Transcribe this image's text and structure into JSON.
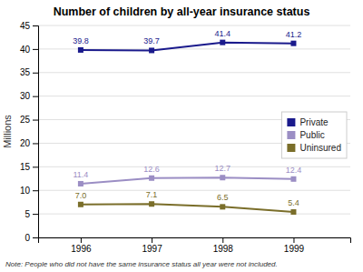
{
  "chart_data": {
    "type": "line",
    "title": "Number of children by all-year insurance status",
    "y_label": "Millions",
    "x": [
      1996,
      1997,
      1998,
      1999
    ],
    "xlim": [
      1995.4,
      1999.8
    ],
    "xticks": [
      1996,
      1997,
      1998,
      1999
    ],
    "ylim": [
      0,
      45
    ],
    "yticks": [
      0,
      5,
      10,
      15,
      20,
      25,
      30,
      35,
      40,
      45
    ],
    "grid": true,
    "legend": "right",
    "data_labels": true,
    "marker": "square",
    "series": [
      {
        "name": "Private",
        "color": "#1a1a8c",
        "values": [
          39.8,
          39.7,
          41.4,
          41.2
        ]
      },
      {
        "name": "Public",
        "color": "#9b8ec4",
        "values": [
          11.4,
          12.6,
          12.7,
          12.4
        ]
      },
      {
        "name": "Uninsured",
        "color": "#7a6e2a",
        "values": [
          7.0,
          7.1,
          6.5,
          5.4
        ],
        "value_labels": [
          "7.0",
          "7.1",
          "6.5",
          "5.4"
        ]
      }
    ],
    "annotations": [
      "Note: People who did not have the same insurance status all year were not included."
    ]
  }
}
